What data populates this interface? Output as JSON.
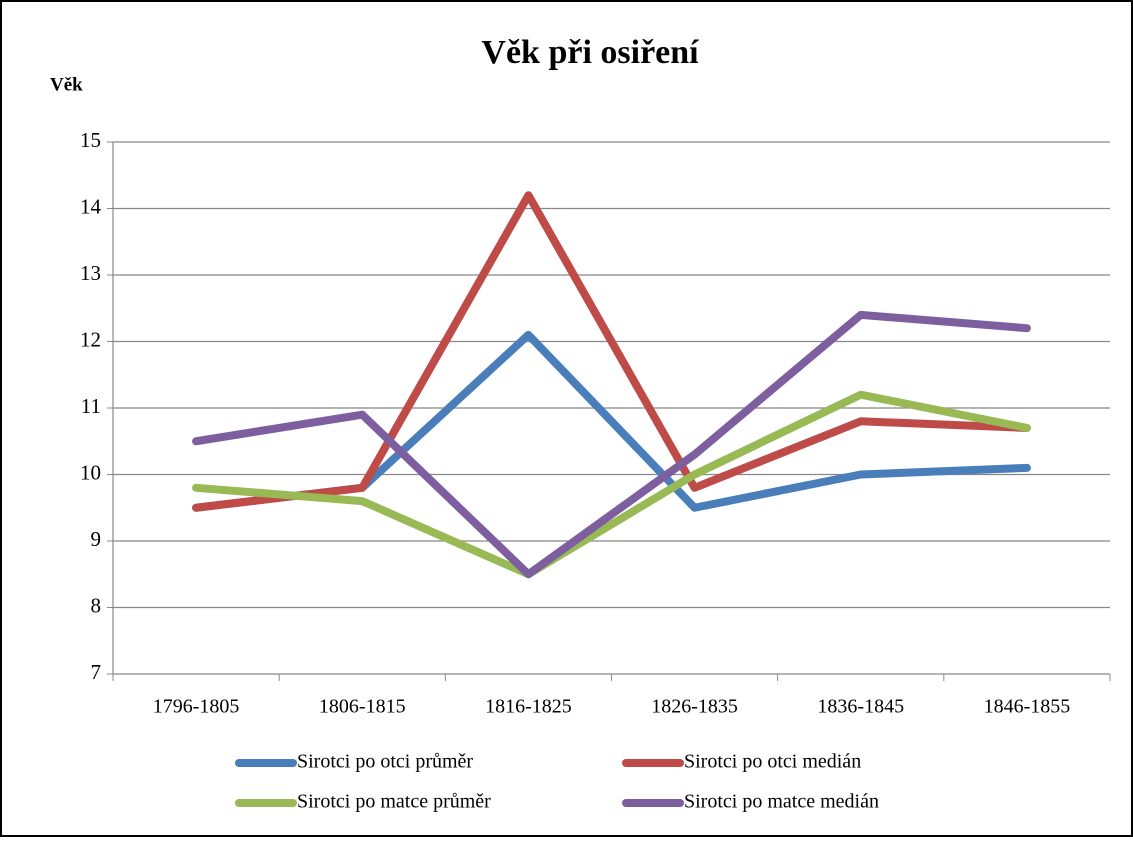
{
  "chart_data": {
    "type": "line",
    "title": "Věk při osiření",
    "y_label": "Věk",
    "categories": [
      "1796-1805",
      "1806-1815",
      "1816-1825",
      "1826-1835",
      "1836-1845",
      "1846-1855"
    ],
    "series": [
      {
        "name": "Sirotci po otci průměr",
        "color": "#4a7ebb",
        "values": [
          9.5,
          9.8,
          12.1,
          9.5,
          10.0,
          10.1
        ]
      },
      {
        "name": "Sirotci po otci medián",
        "color": "#be4b48",
        "values": [
          9.5,
          9.8,
          14.2,
          9.8,
          10.8,
          10.7
        ]
      },
      {
        "name": "Sirotci po matce průměr",
        "color": "#98b954",
        "values": [
          9.8,
          9.6,
          8.5,
          10.0,
          11.2,
          10.7
        ]
      },
      {
        "name": "Sirotci po matce medián",
        "color": "#7d5fa0",
        "values": [
          10.5,
          10.9,
          8.5,
          10.3,
          12.4,
          12.2
        ]
      }
    ],
    "ylim": [
      7,
      15
    ],
    "yticks": [
      7,
      8,
      9,
      10,
      11,
      12,
      13,
      14,
      15
    ],
    "grid": true,
    "legend": "bottom"
  }
}
